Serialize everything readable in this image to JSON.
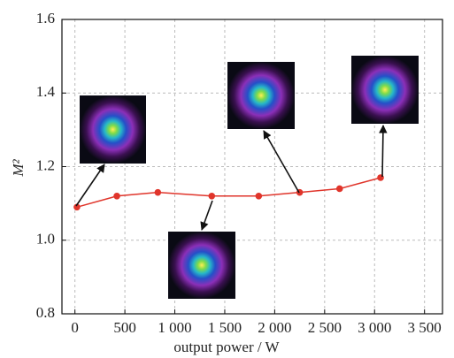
{
  "chart_data": {
    "type": "line",
    "x_label": "output power / W",
    "y_label": "M²",
    "x": [
      20,
      420,
      830,
      1370,
      1840,
      2250,
      2650,
      3060
    ],
    "series": [
      {
        "values": [
          1.09,
          1.12,
          1.13,
          1.12,
          1.12,
          1.13,
          1.14,
          1.17
        ],
        "color": "#e0352b"
      }
    ],
    "xlim": [
      -130,
      3680
    ],
    "xticks": [
      0,
      500,
      {
        "value": 1000,
        "label": "1 000"
      },
      {
        "value": 1500,
        "label": "1 500"
      },
      {
        "value": 2000,
        "label": "2 000"
      },
      {
        "value": 2500,
        "label": "2 500"
      },
      {
        "value": 3000,
        "label": "3 000"
      },
      {
        "value": 3500,
        "label": "3 500"
      }
    ],
    "ylim": [
      0.8,
      1.6
    ],
    "yticks": [
      0.8,
      {
        "value": 1,
        "label": "1.0"
      },
      1.2,
      1.4,
      1.6
    ],
    "grid": true
  }
}
